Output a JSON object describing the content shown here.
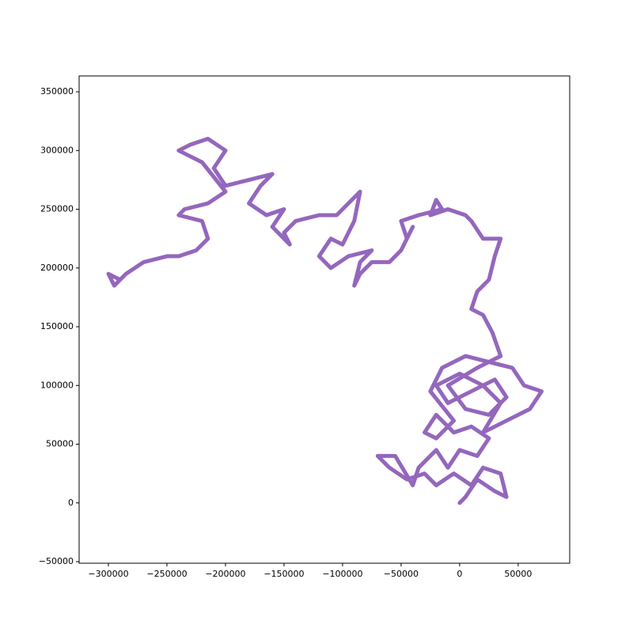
{
  "chart_data": {
    "type": "line",
    "color": "#9467bd",
    "x": [
      0,
      5000,
      15000,
      30000,
      40000,
      35000,
      20000,
      10000,
      -5000,
      -20000,
      -30000,
      -45000,
      -60000,
      -70000,
      -55000,
      -40000,
      -35000,
      -20000,
      -10000,
      0,
      15000,
      25000,
      10000,
      -5000,
      -20000,
      -30000,
      -20000,
      -5000,
      -25000,
      -15000,
      5000,
      25000,
      45000,
      55000,
      70000,
      60000,
      40000,
      20000,
      35000,
      20000,
      0,
      -20000,
      -10000,
      10000,
      30000,
      40000,
      25000,
      5000,
      -10000,
      15000,
      35000,
      28000,
      20000,
      10000,
      15000,
      25000,
      30000,
      35000,
      20000,
      10000,
      5000,
      -10000,
      -25000,
      -20000,
      -15000,
      -35000,
      -50000,
      -45000,
      -40000,
      -50000,
      -60000,
      -75000,
      -85000,
      -90000,
      -85000,
      -75000,
      -95000,
      -110000,
      -120000,
      -110000,
      -100000,
      -90000,
      -85000,
      -95000,
      -105000,
      -120000,
      -140000,
      -150000,
      -145000,
      -160000,
      -150000,
      -165000,
      -180000,
      -170000,
      -160000,
      -180000,
      -200000,
      -210000,
      -200000,
      -215000,
      -230000,
      -240000,
      -220000,
      -200000,
      -215000,
      -235000,
      -240000,
      -220000,
      -215000,
      -225000,
      -240000,
      -250000,
      -270000,
      -285000,
      -295000,
      -300000,
      -290000
    ],
    "values": [
      0,
      5000,
      20000,
      10000,
      5000,
      25000,
      30000,
      15000,
      25000,
      15000,
      25000,
      20000,
      30000,
      40000,
      40000,
      15000,
      30000,
      45000,
      30000,
      45000,
      40000,
      55000,
      65000,
      60000,
      75000,
      60000,
      55000,
      70000,
      95000,
      115000,
      125000,
      120000,
      115000,
      100000,
      95000,
      80000,
      70000,
      60000,
      85000,
      100000,
      110000,
      100000,
      85000,
      95000,
      105000,
      90000,
      75000,
      80000,
      100000,
      115000,
      125000,
      145000,
      160000,
      165000,
      180000,
      190000,
      210000,
      225000,
      225000,
      240000,
      245000,
      250000,
      245000,
      258000,
      250000,
      245000,
      240000,
      225000,
      235000,
      215000,
      205000,
      205000,
      195000,
      185000,
      205000,
      215000,
      210000,
      200000,
      210000,
      225000,
      220000,
      240000,
      265000,
      255000,
      245000,
      245000,
      240000,
      230000,
      220000,
      235000,
      250000,
      245000,
      255000,
      270000,
      280000,
      275000,
      270000,
      285000,
      300000,
      310000,
      305000,
      300000,
      290000,
      265000,
      255000,
      250000,
      245000,
      240000,
      225000,
      215000,
      210000,
      210000,
      205000,
      195000,
      185000,
      195000,
      190000
    ],
    "xlim": [
      -325000,
      94000
    ],
    "ylim": [
      -51350,
      363500
    ],
    "xticks": [
      {
        "value": -300000,
        "label": "−300000"
      },
      {
        "value": -250000,
        "label": "−250000"
      },
      {
        "value": -200000,
        "label": "−200000"
      },
      {
        "value": -150000,
        "label": "−150000"
      },
      {
        "value": -100000,
        "label": "−100000"
      },
      {
        "value": -50000,
        "label": "−50000"
      },
      0,
      50000
    ],
    "yticks": [
      {
        "value": -50000,
        "label": "−50000"
      },
      0,
      50000,
      100000,
      150000,
      200000,
      250000,
      300000,
      350000
    ]
  }
}
